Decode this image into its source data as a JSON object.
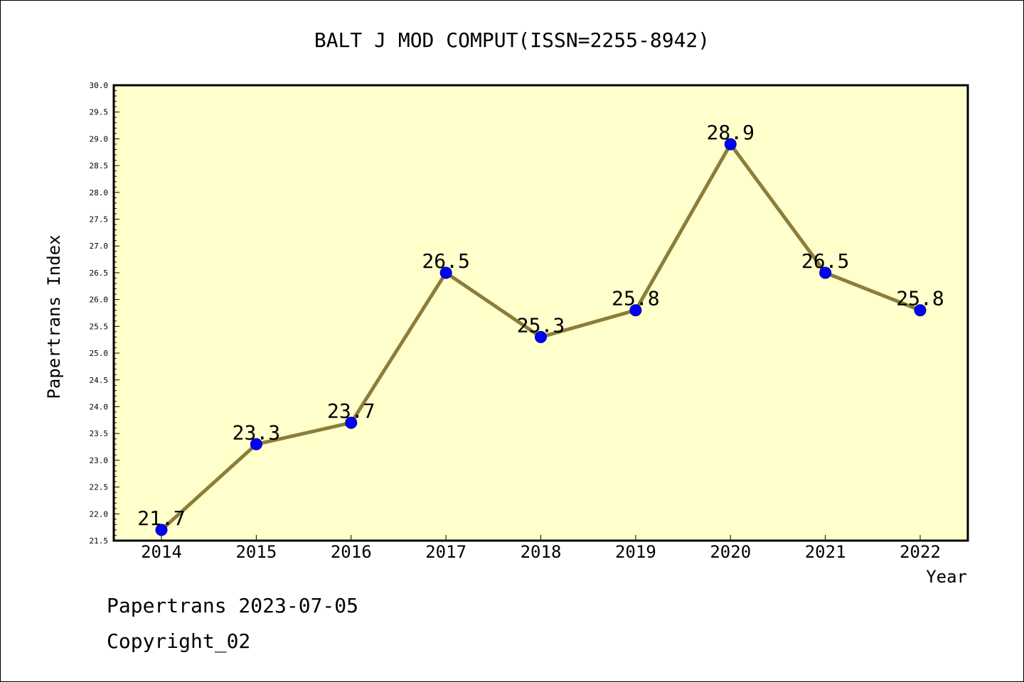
{
  "chart_data": {
    "type": "line",
    "title": "BALT J MOD COMPUT(ISSN=2255-8942)",
    "xlabel": "Year",
    "ylabel": "Papertrans Index",
    "categories": [
      "2014",
      "2015",
      "2016",
      "2017",
      "2018",
      "2019",
      "2020",
      "2021",
      "2022"
    ],
    "series": [
      {
        "values": [
          21.7,
          23.3,
          23.7,
          26.5,
          25.3,
          25.8,
          28.9,
          26.5,
          25.8
        ],
        "data_labels": [
          "21.7",
          "23.3",
          "23.7",
          "26.5",
          "25.3",
          "25.8",
          "28.9",
          "26.5",
          "25.8"
        ]
      }
    ],
    "ylim": [
      21.5,
      30.0
    ],
    "yticks": [
      "21.5",
      "22.0",
      "22.5",
      "23.0",
      "23.5",
      "24.0",
      "24.5",
      "25.0",
      "25.5",
      "26.0",
      "26.5",
      "27.0",
      "27.5",
      "28.0",
      "28.5",
      "29.0",
      "29.5",
      "30.0"
    ],
    "grid": false,
    "colors": {
      "plot_background": "#FFFFCC",
      "line": "#8B7D3A",
      "marker": "#0000FF"
    }
  },
  "footer": {
    "date_line": "Papertrans 2023-07-05",
    "copyright": "Copyright_02"
  }
}
